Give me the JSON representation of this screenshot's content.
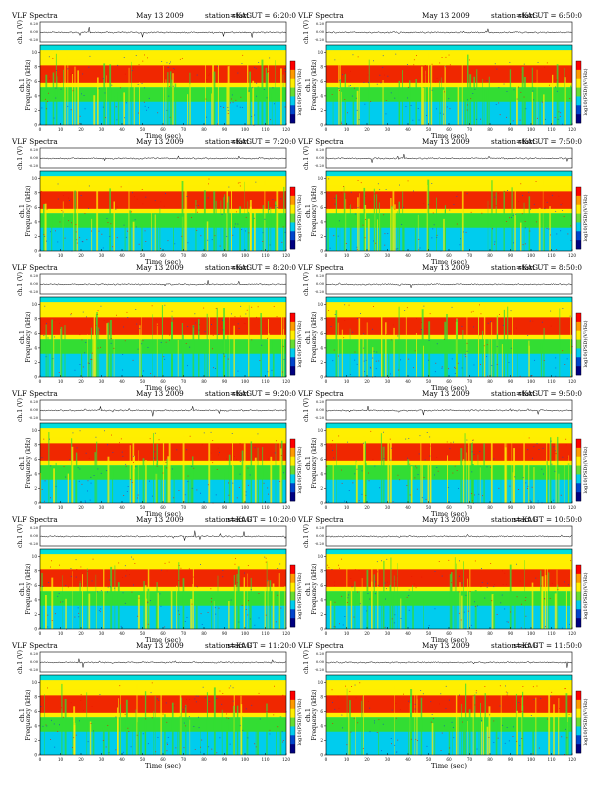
{
  "header": {
    "left": "VLF Spectra",
    "date": "May 13 2009",
    "station": "station=KAG",
    "start_prefix": "start UT ="
  },
  "labels": {
    "ch1_axis": "ch.1 (V)",
    "freq_axis_line1": "ch.1",
    "freq_axis_line2": "Frequency (kHz)",
    "time_axis": "Time (sec)",
    "colorbar": "log10(PSD)(V²/Hz)"
  },
  "colors": {
    "low": "#00ccee",
    "mid": "#33dd33",
    "high": "#ffee00",
    "peak": "#ee1100",
    "top_band": "#00dddd",
    "waveform": "#000000"
  },
  "chart_data": [
    {
      "type": "heatmap",
      "start_ut": "6:20:0",
      "x": {
        "label": "Time (sec)",
        "ticks": [
          0,
          10,
          20,
          30,
          40,
          50,
          60,
          70,
          80,
          90,
          100,
          110,
          120
        ],
        "range": [
          0,
          120
        ]
      },
      "y": {
        "label": "Frequency (kHz)",
        "ticks": [
          0,
          2,
          4,
          6,
          8,
          10
        ],
        "range": [
          0,
          11
        ]
      },
      "waveform_ticks": [
        "0.20",
        "0.00",
        "-0.20"
      ]
    },
    {
      "type": "heatmap",
      "start_ut": "6:50:0",
      "x": {
        "label": "Time (sec)",
        "ticks": [
          0,
          10,
          20,
          30,
          40,
          50,
          60,
          70,
          80,
          90,
          100,
          110,
          120
        ],
        "range": [
          0,
          120
        ]
      },
      "y": {
        "label": "Frequency (kHz)",
        "ticks": [
          0,
          2,
          4,
          6,
          8,
          10
        ],
        "range": [
          0,
          11
        ]
      },
      "waveform_ticks": [
        "0.20",
        "0.00",
        "-0.20"
      ]
    },
    {
      "type": "heatmap",
      "start_ut": "7:20:0",
      "x": {
        "label": "Time (sec)",
        "ticks": [
          0,
          10,
          20,
          30,
          40,
          50,
          60,
          70,
          80,
          90,
          100,
          110,
          120
        ],
        "range": [
          0,
          120
        ]
      },
      "y": {
        "label": "Frequency (kHz)",
        "ticks": [
          0,
          2,
          4,
          6,
          8,
          10
        ],
        "range": [
          0,
          11
        ]
      },
      "waveform_ticks": [
        "0.20",
        "0.00",
        "-0.20"
      ]
    },
    {
      "type": "heatmap",
      "start_ut": "7:50:0",
      "x": {
        "label": "Time (sec)",
        "ticks": [
          0,
          10,
          20,
          30,
          40,
          50,
          60,
          70,
          80,
          90,
          100,
          110,
          120
        ],
        "range": [
          0,
          120
        ]
      },
      "y": {
        "label": "Frequency (kHz)",
        "ticks": [
          0,
          2,
          4,
          6,
          8,
          10
        ],
        "range": [
          0,
          11
        ]
      },
      "waveform_ticks": [
        "0.20",
        "0.00",
        "-0.20"
      ]
    },
    {
      "type": "heatmap",
      "start_ut": "8:20:0",
      "x": {
        "label": "Time (sec)",
        "ticks": [
          0,
          10,
          20,
          30,
          40,
          50,
          60,
          70,
          80,
          90,
          100,
          110,
          120
        ],
        "range": [
          0,
          120
        ]
      },
      "y": {
        "label": "Frequency (kHz)",
        "ticks": [
          0,
          2,
          4,
          6,
          8,
          10
        ],
        "range": [
          0,
          11
        ]
      },
      "waveform_ticks": [
        "0.20",
        "0.00",
        "-0.20"
      ]
    },
    {
      "type": "heatmap",
      "start_ut": "8:50:0",
      "x": {
        "label": "Time (sec)",
        "ticks": [
          0,
          10,
          20,
          30,
          40,
          50,
          60,
          70,
          80,
          90,
          100,
          110,
          120
        ],
        "range": [
          0,
          120
        ]
      },
      "y": {
        "label": "Frequency (kHz)",
        "ticks": [
          0,
          2,
          4,
          6,
          8,
          10
        ],
        "range": [
          0,
          11
        ]
      },
      "waveform_ticks": [
        "0.20",
        "0.00",
        "-0.20"
      ]
    },
    {
      "type": "heatmap",
      "start_ut": "9:20:0",
      "x": {
        "label": "Time (sec)",
        "ticks": [
          0,
          10,
          20,
          30,
          40,
          50,
          60,
          70,
          80,
          90,
          100,
          110,
          120
        ],
        "range": [
          0,
          120
        ]
      },
      "y": {
        "label": "Frequency (kHz)",
        "ticks": [
          0,
          2,
          4,
          6,
          8,
          10
        ],
        "range": [
          0,
          11
        ]
      },
      "waveform_ticks": [
        "0.20",
        "0.00",
        "-0.20"
      ]
    },
    {
      "type": "heatmap",
      "start_ut": "9:50:0",
      "x": {
        "label": "Time (sec)",
        "ticks": [
          0,
          10,
          20,
          30,
          40,
          50,
          60,
          70,
          80,
          90,
          100,
          110,
          120
        ],
        "range": [
          0,
          120
        ]
      },
      "y": {
        "label": "Frequency (kHz)",
        "ticks": [
          0,
          2,
          4,
          6,
          8,
          10
        ],
        "range": [
          0,
          11
        ]
      },
      "waveform_ticks": [
        "0.20",
        "0.00",
        "-0.20"
      ]
    },
    {
      "type": "heatmap",
      "start_ut": "10:20:0",
      "x": {
        "label": "Time (sec)",
        "ticks": [
          0,
          10,
          20,
          30,
          40,
          50,
          60,
          70,
          80,
          90,
          100,
          110,
          120
        ],
        "range": [
          0,
          120
        ]
      },
      "y": {
        "label": "Frequency (kHz)",
        "ticks": [
          0,
          2,
          4,
          6,
          8,
          10
        ],
        "range": [
          0,
          11
        ]
      },
      "waveform_ticks": [
        "0.20",
        "0.00",
        "-0.20"
      ]
    },
    {
      "type": "heatmap",
      "start_ut": "10:50:0",
      "x": {
        "label": "Time (sec)",
        "ticks": [
          0,
          10,
          20,
          30,
          40,
          50,
          60,
          70,
          80,
          90,
          100,
          110,
          120
        ],
        "range": [
          0,
          120
        ]
      },
      "y": {
        "label": "Frequency (kHz)",
        "ticks": [
          0,
          2,
          4,
          6,
          8,
          10
        ],
        "range": [
          0,
          11
        ]
      },
      "waveform_ticks": [
        "0.20",
        "0.00",
        "-0.20"
      ]
    },
    {
      "type": "heatmap",
      "start_ut": "11:20:0",
      "x": {
        "label": "Time (sec)",
        "ticks": [
          0,
          10,
          20,
          30,
          40,
          50,
          60,
          70,
          80,
          90,
          100,
          110,
          120
        ],
        "range": [
          0,
          120
        ]
      },
      "y": {
        "label": "Frequency (kHz)",
        "ticks": [
          0,
          2,
          4,
          6,
          8,
          10
        ],
        "range": [
          0,
          11
        ]
      },
      "waveform_ticks": [
        "0.20",
        "0.00",
        "-0.20"
      ]
    },
    {
      "type": "heatmap",
      "start_ut": "11:50:0",
      "x": {
        "label": "Time (sec)",
        "ticks": [
          0,
          10,
          20,
          30,
          40,
          50,
          60,
          70,
          80,
          90,
          100,
          110,
          120
        ],
        "range": [
          0,
          120
        ]
      },
      "y": {
        "label": "Frequency (kHz)",
        "ticks": [
          0,
          2,
          4,
          6,
          8,
          10
        ],
        "range": [
          0,
          11
        ]
      },
      "waveform_ticks": [
        "0.20",
        "0.00",
        "-0.20"
      ]
    }
  ]
}
